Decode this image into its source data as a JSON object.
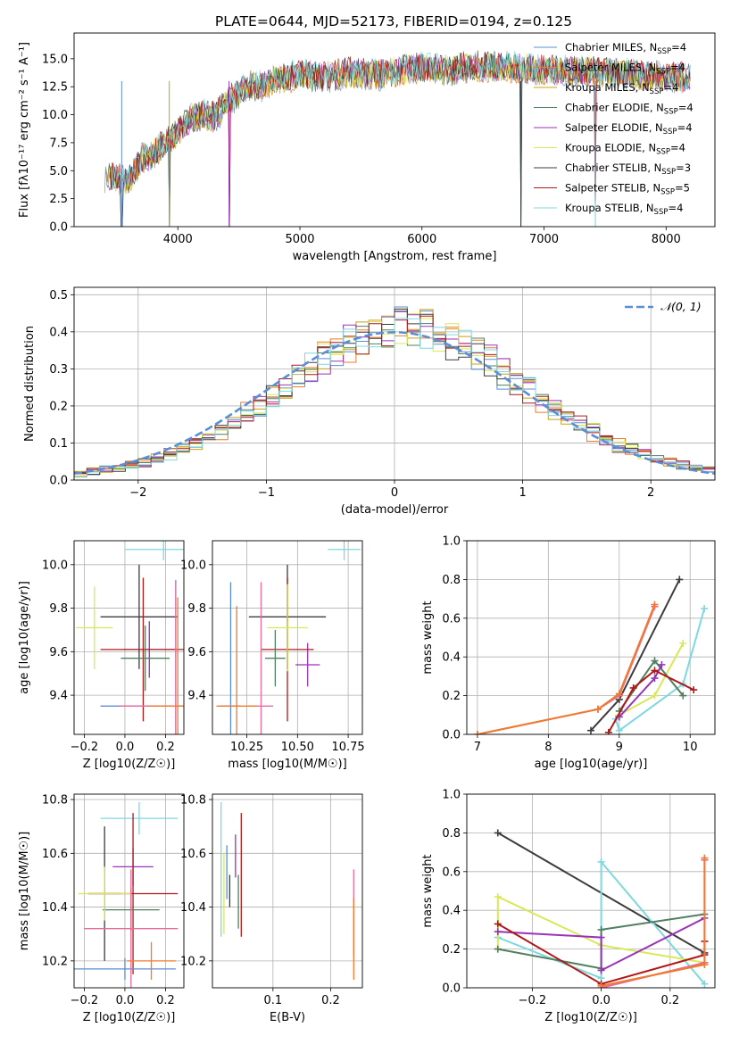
{
  "chart_data": [
    {
      "id": "spectrum",
      "type": "line",
      "title": "PLATE=0644, MJD=52173, FIBERID=0194, z=0.125",
      "xlabel": "wavelength [Angstrom, rest frame]",
      "ylabel": "Flux [fλ10⁻¹⁷ erg cm⁻² s⁻¹ A⁻¹]",
      "xlim": [
        3150,
        8400
      ],
      "ylim": [
        0,
        17.3
      ],
      "xticks": [
        "4000",
        "5000",
        "6000",
        "7000",
        "8000"
      ],
      "yticks": [
        "0.0",
        "2.5",
        "5.0",
        "7.5",
        "10.0",
        "12.5",
        "15.0"
      ],
      "legend_position": "upper-right",
      "continuum": {
        "x": [
          3400,
          3500,
          3600,
          3700,
          3800,
          3900,
          4000,
          4100,
          4200,
          4300,
          4400,
          4500,
          4600,
          4700,
          4800,
          4900,
          5000,
          5200,
          5400,
          5600,
          5800,
          6000,
          6200,
          6400,
          6600,
          6800,
          7000,
          7200,
          7400,
          7600,
          7800,
          8000,
          8200
        ],
        "y": [
          4.5,
          4.3,
          4.2,
          6.0,
          6.5,
          7.5,
          8.5,
          9.5,
          10.0,
          9.8,
          11.0,
          12.0,
          12.7,
          12.5,
          13.3,
          13.3,
          13.6,
          13.3,
          13.8,
          13.5,
          13.9,
          14.2,
          14.0,
          14.3,
          14.3,
          14.2,
          14.0,
          13.9,
          13.9,
          13.7,
          13.6,
          13.4,
          13.3
        ]
      },
      "dips": [
        {
          "x": 3540,
          "y": 0.0
        },
        {
          "x": 3930,
          "y": 0.0
        },
        {
          "x": 4420,
          "y": 0.0
        },
        {
          "x": 6810,
          "y": 0.0
        },
        {
          "x": 7420,
          "y": 0.0
        }
      ],
      "series": [
        {
          "name": "Chabrier MILES, N_SSP=4",
          "label_main": "Chabrier MILES, N",
          "label_sub": "SSP",
          "label_tail": "=4",
          "color": "#5a8fd6"
        },
        {
          "name": "Salpeter MILES, N_SSP=4",
          "label_main": "Salpeter MILES, N",
          "label_sub": "SSP",
          "label_tail": "=4",
          "color": "#f07a2a"
        },
        {
          "name": "Kroupa MILES, N_SSP=4",
          "label_main": "Kroupa MILES, N",
          "label_sub": "SSP",
          "label_tail": "=4",
          "color": "#c8a014"
        },
        {
          "name": "Chabrier ELODIE, N_SSP=4",
          "label_main": "Chabrier ELODIE, N",
          "label_sub": "SSP",
          "label_tail": "=4",
          "color": "#4f8060"
        },
        {
          "name": "Salpeter ELODIE, N_SSP=4",
          "label_main": "Salpeter ELODIE, N",
          "label_sub": "SSP",
          "label_tail": "=4",
          "color": "#9932b8"
        },
        {
          "name": "Kroupa ELODIE, N_SSP=4",
          "label_main": "Kroupa ELODIE, N",
          "label_sub": "SSP",
          "label_tail": "=4",
          "color": "#d9e855"
        },
        {
          "name": "Chabrier STELIB, N_SSP=3",
          "label_main": "Chabrier STELIB, N",
          "label_sub": "SSP",
          "label_tail": "=3",
          "color": "#3c3c3c"
        },
        {
          "name": "Salpeter STELIB, N_SSP=5",
          "label_main": "Salpeter STELIB, N",
          "label_sub": "SSP",
          "label_tail": "=5",
          "color": "#b01818"
        },
        {
          "name": "Kroupa STELIB, N_SSP=4",
          "label_main": "Kroupa STELIB, N",
          "label_sub": "SSP",
          "label_tail": "=4",
          "color": "#7dd8e0"
        }
      ]
    },
    {
      "id": "residuals",
      "type": "histogram",
      "xlabel": "(data-model)/error",
      "ylabel": "Normed distribution",
      "xlim": [
        -2.5,
        2.5
      ],
      "ylim": [
        0,
        0.52
      ],
      "xticks": [
        "−2",
        "−1",
        "0",
        "1",
        "2"
      ],
      "yticks": [
        "0.0",
        "0.1",
        "0.2",
        "0.3",
        "0.4",
        "0.5"
      ],
      "bin_edges": [
        -2.5,
        -2.4,
        -2.3,
        -2.2,
        -2.1,
        -2.0,
        -1.9,
        -1.8,
        -1.7,
        -1.6,
        -1.5,
        -1.4,
        -1.3,
        -1.2,
        -1.1,
        -1.0,
        -0.9,
        -0.8,
        -0.7,
        -0.6,
        -0.5,
        -0.4,
        -0.3,
        -0.2,
        -0.1,
        0.0,
        0.1,
        0.2,
        0.3,
        0.4,
        0.5,
        0.6,
        0.7,
        0.8,
        0.9,
        1.0,
        1.1,
        1.2,
        1.3,
        1.4,
        1.5,
        1.6,
        1.7,
        1.8,
        1.9,
        2.0,
        2.1,
        2.2,
        2.3,
        2.4,
        2.5
      ],
      "base_values": [
        0.018,
        0.022,
        0.028,
        0.033,
        0.04,
        0.05,
        0.06,
        0.07,
        0.085,
        0.1,
        0.115,
        0.135,
        0.155,
        0.18,
        0.2,
        0.225,
        0.25,
        0.28,
        0.3,
        0.325,
        0.35,
        0.365,
        0.385,
        0.4,
        0.405,
        0.41,
        0.405,
        0.4,
        0.39,
        0.375,
        0.36,
        0.34,
        0.32,
        0.295,
        0.27,
        0.245,
        0.22,
        0.195,
        0.17,
        0.15,
        0.13,
        0.11,
        0.095,
        0.08,
        0.07,
        0.058,
        0.048,
        0.04,
        0.033,
        0.028
      ],
      "series_colors": [
        "#5a8fd6",
        "#f07a2a",
        "#c8a014",
        "#4f8060",
        "#9932b8",
        "#d9e855",
        "#3c3c3c",
        "#b01818",
        "#7dd8e0"
      ],
      "reference": {
        "name": "𝒩(0, 1)",
        "color": "#5a8fd6"
      },
      "legend_position": "upper-right"
    },
    {
      "id": "age-vs-Z",
      "type": "scatter",
      "xlabel": "Z [log10(Z/Z☉)]",
      "ylabel": "age [log10(age/yr)]",
      "xlim": [
        -0.25,
        0.29
      ],
      "ylim": [
        9.22,
        10.11
      ],
      "xticks": [
        "−0.2",
        "0.0",
        "0.2"
      ],
      "yticks": [
        "9.4",
        "9.6",
        "9.8",
        "10.0"
      ],
      "points": [
        {
          "x": 0.19,
          "y": 10.07,
          "xerr": 0.19,
          "yerr": 0.05,
          "color": "#7dd8e0"
        },
        {
          "x": 0.07,
          "y": 9.76,
          "xerr": 0.19,
          "yerr": 0.24,
          "color": "#3c3c3c"
        },
        {
          "x": 0.12,
          "y": 9.61,
          "xerr": 0.13,
          "yerr": 0.13,
          "color": "#9932b8"
        },
        {
          "x": 0.09,
          "y": 9.61,
          "xerr": 0.21,
          "yerr": 0.33,
          "color": "#b01818"
        },
        {
          "x": 0.1,
          "y": 9.57,
          "xerr": 0.12,
          "yerr": 0.15,
          "color": "#4f8060"
        },
        {
          "x": -0.15,
          "y": 9.71,
          "xerr": 0.09,
          "yerr": 0.19,
          "color": "#d9e855"
        },
        {
          "x": 0.25,
          "y": 9.35,
          "xerr": 0.37,
          "yerr": 0.58,
          "color": "#5a8fd6"
        },
        {
          "x": 0.25,
          "y": 9.35,
          "xerr": 0.28,
          "yerr": 0.57,
          "color": "#e86b9a"
        },
        {
          "x": 0.26,
          "y": 9.35,
          "xerr": 0.15,
          "yerr": 0.5,
          "color": "#f07a2a"
        }
      ]
    },
    {
      "id": "age-vs-mass",
      "type": "scatter",
      "xlabel": "mass [log10(M/M☉)]",
      "ylabel": "",
      "xlim": [
        10.08,
        10.82
      ],
      "ylim": [
        9.22,
        10.11
      ],
      "xticks": [
        "10.25",
        "10.50",
        "10.75"
      ],
      "yticks": [
        "9.4",
        "9.6",
        "9.8",
        "10.0"
      ],
      "points": [
        {
          "x": 10.73,
          "y": 10.07,
          "xerr": 0.08,
          "yerr": 0.05,
          "color": "#7dd8e0"
        },
        {
          "x": 10.45,
          "y": 9.76,
          "xerr": 0.19,
          "yerr": 0.24,
          "color": "#3c3c3c"
        },
        {
          "x": 10.55,
          "y": 9.54,
          "xerr": 0.06,
          "yerr": 0.1,
          "color": "#9932b8"
        },
        {
          "x": 10.45,
          "y": 9.61,
          "xerr": 0.13,
          "yerr": 0.33,
          "color": "#b01818"
        },
        {
          "x": 10.39,
          "y": 9.57,
          "xerr": 0.05,
          "yerr": 0.13,
          "color": "#4f8060"
        },
        {
          "x": 10.45,
          "y": 9.71,
          "xerr": 0.1,
          "yerr": 0.2,
          "color": "#d9e855"
        },
        {
          "x": 10.17,
          "y": 9.35,
          "xerr": 0.05,
          "yerr": 0.57,
          "color": "#5a8fd6"
        },
        {
          "x": 10.32,
          "y": 9.35,
          "xerr": 0.06,
          "yerr": 0.57,
          "color": "#e86b9a"
        },
        {
          "x": 10.2,
          "y": 9.35,
          "xerr": 0.1,
          "yerr": 0.46,
          "color": "#f07a2a"
        }
      ]
    },
    {
      "id": "mass-weight-vs-age",
      "type": "line",
      "xlabel": "age  [log10(age/yr)]",
      "ylabel": "mass weight",
      "xlim": [
        6.85,
        10.35
      ],
      "ylim": [
        0,
        1.0
      ],
      "xticks": [
        "7",
        "8",
        "9",
        "10"
      ],
      "yticks": [
        "0.0",
        "0.2",
        "0.4",
        "0.6",
        "0.8",
        "1.0"
      ],
      "series": [
        {
          "color": "#3c3c3c",
          "x": [
            8.6,
            9.0,
            9.85
          ],
          "y": [
            0.02,
            0.18,
            0.8
          ]
        },
        {
          "color": "#7dd8e0",
          "x": [
            8.95,
            9.0,
            9.9,
            10.2
          ],
          "y": [
            0.08,
            0.02,
            0.26,
            0.65
          ]
        },
        {
          "color": "#d9e855",
          "x": [
            9.0,
            9.5,
            9.9
          ],
          "y": [
            0.1,
            0.2,
            0.47
          ]
        },
        {
          "color": "#4f8060",
          "x": [
            9.0,
            9.5,
            9.9
          ],
          "y": [
            0.12,
            0.38,
            0.2
          ]
        },
        {
          "color": "#9932b8",
          "x": [
            9.0,
            9.5,
            9.6
          ],
          "y": [
            0.09,
            0.29,
            0.36
          ]
        },
        {
          "color": "#b01818",
          "x": [
            8.85,
            9.2,
            9.5,
            10.05
          ],
          "y": [
            0.01,
            0.24,
            0.33,
            0.23
          ]
        },
        {
          "color": "#e86b9a",
          "x": [
            7.0,
            8.7,
            9.0,
            9.5
          ],
          "y": [
            0.0,
            0.13,
            0.2,
            0.66
          ]
        },
        {
          "color": "#f07a2a",
          "x": [
            7.0,
            8.7,
            9.0,
            9.5
          ],
          "y": [
            0.0,
            0.13,
            0.21,
            0.67
          ]
        }
      ]
    },
    {
      "id": "mass-vs-Z",
      "type": "scatter",
      "xlabel": "Z [log10(Z/Z☉)]",
      "ylabel": "mass [log10(M/M☉)]",
      "xlim": [
        -0.25,
        0.29
      ],
      "ylim": [
        10.1,
        10.82
      ],
      "xticks": [
        "−0.2",
        "0.0",
        "0.2"
      ],
      "yticks": [
        "10.2",
        "10.4",
        "10.6",
        "10.8"
      ],
      "points": [
        {
          "x": 0.07,
          "y": 10.73,
          "xerr": 0.19,
          "yerr": 0.06,
          "color": "#7dd8e0"
        },
        {
          "x": -0.1,
          "y": 10.45,
          "xerr": 0.08,
          "yerr": 0.25,
          "color": "#3c3c3c"
        },
        {
          "x": 0.04,
          "y": 10.55,
          "xerr": 0.1,
          "yerr": 0.07,
          "color": "#9932b8"
        },
        {
          "x": 0.04,
          "y": 10.45,
          "xerr": 0.22,
          "yerr": 0.3,
          "color": "#b01818"
        },
        {
          "x": 0.03,
          "y": 10.39,
          "xerr": 0.14,
          "yerr": 0.08,
          "color": "#4f8060"
        },
        {
          "x": -0.1,
          "y": 10.45,
          "xerr": 0.13,
          "yerr": 0.1,
          "color": "#d9e855"
        },
        {
          "x": 0.0,
          "y": 10.17,
          "xerr": 0.25,
          "yerr": 0.04,
          "color": "#5a8fd6"
        },
        {
          "x": 0.03,
          "y": 10.32,
          "xerr": 0.23,
          "yerr": 0.22,
          "color": "#e86b9a"
        },
        {
          "x": 0.13,
          "y": 10.2,
          "xerr": 0.12,
          "yerr": 0.07,
          "color": "#f07a2a"
        }
      ]
    },
    {
      "id": "mass-vs-ebv",
      "type": "scatter",
      "xlabel": "E(B-V)",
      "ylabel": "",
      "xlim": [
        -0.005,
        0.255
      ],
      "ylim": [
        10.1,
        10.82
      ],
      "xticks": [
        "0.1",
        "0.2"
      ],
      "yticks": [
        "10.2",
        "10.4",
        "10.6",
        "10.8"
      ],
      "points": [
        {
          "x": 0.01,
          "y": 10.54,
          "xerr": 0.0,
          "yerr": 0.25,
          "color": "#7dd8e0"
        },
        {
          "x": 0.02,
          "y": 10.53,
          "xerr": 0.0,
          "yerr": 0.1,
          "color": "#5a8fd6"
        },
        {
          "x": 0.025,
          "y": 10.46,
          "xerr": 0.0,
          "yerr": 0.06,
          "color": "#3c3c3c"
        },
        {
          "x": 0.015,
          "y": 10.45,
          "xerr": 0.0,
          "yerr": 0.15,
          "color": "#d9e855"
        },
        {
          "x": 0.035,
          "y": 10.59,
          "xerr": 0.0,
          "yerr": 0.08,
          "color": "#9932b8"
        },
        {
          "x": 0.045,
          "y": 10.52,
          "xerr": 0.0,
          "yerr": 0.23,
          "color": "#b01818"
        },
        {
          "x": 0.04,
          "y": 10.42,
          "xerr": 0.0,
          "yerr": 0.1,
          "color": "#4f8060"
        },
        {
          "x": 0.24,
          "y": 10.38,
          "xerr": 0.0,
          "yerr": 0.16,
          "color": "#e86b9a"
        },
        {
          "x": 0.24,
          "y": 10.28,
          "xerr": 0.0,
          "yerr": 0.15,
          "color": "#f07a2a"
        }
      ]
    },
    {
      "id": "mass-weight-vs-Z",
      "type": "line",
      "xlabel": "Z [log10(Z/Z☉)]",
      "ylabel": "mass weight",
      "xlim": [
        -0.39,
        0.33
      ],
      "ylim": [
        0,
        1.0
      ],
      "xticks": [
        "−0.2",
        "0.0",
        "0.2"
      ],
      "yticks": [
        "0.0",
        "0.2",
        "0.4",
        "0.6",
        "0.8",
        "1.0"
      ],
      "series": [
        {
          "color": "#3c3c3c",
          "x": [
            -0.3,
            0.3
          ],
          "y": [
            0.8,
            0.18
          ]
        },
        {
          "color": "#7dd8e0",
          "x": [
            -0.3,
            0.0,
            0.0,
            0.3
          ],
          "y": [
            0.26,
            0.05,
            0.65,
            0.02
          ]
        },
        {
          "color": "#d9e855",
          "x": [
            -0.3,
            -0.3,
            0.0,
            0.3
          ],
          "y": [
            0.2,
            0.47,
            0.22,
            0.13
          ]
        },
        {
          "color": "#4f8060",
          "x": [
            -0.3,
            0.0,
            0.0,
            0.3
          ],
          "y": [
            0.2,
            0.1,
            0.3,
            0.38
          ]
        },
        {
          "color": "#9932b8",
          "x": [
            -0.3,
            0.0,
            0.0,
            0.3
          ],
          "y": [
            0.29,
            0.26,
            0.09,
            0.36
          ]
        },
        {
          "color": "#b01818",
          "x": [
            -0.3,
            0.0,
            0.3,
            0.3
          ],
          "y": [
            0.33,
            0.02,
            0.17,
            0.24
          ]
        },
        {
          "color": "#e86b9a",
          "x": [
            0.0,
            0.3,
            0.3
          ],
          "y": [
            0.0,
            0.13,
            0.66
          ]
        },
        {
          "color": "#f07a2a",
          "x": [
            0.0,
            0.3,
            0.3
          ],
          "y": [
            0.01,
            0.12,
            0.67
          ]
        }
      ]
    }
  ]
}
